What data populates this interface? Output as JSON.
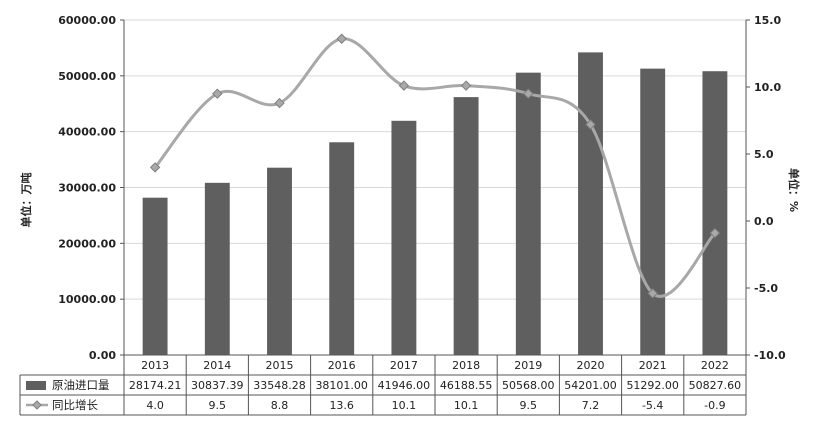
{
  "chart_data": {
    "type": "bar+line",
    "categories": [
      "2013",
      "2014",
      "2015",
      "2016",
      "2017",
      "2018",
      "2019",
      "2020",
      "2021",
      "2022"
    ],
    "series": [
      {
        "name": "原油进口量",
        "type": "bar",
        "axis": "left",
        "color": "#5f5f5f",
        "values": [
          28174.21,
          30837.39,
          33548.28,
          38101.0,
          41946.0,
          46188.55,
          50568.0,
          54201.0,
          51292.0,
          50827.6
        ],
        "labels": [
          "28174.21",
          "30837.39",
          "33548.28",
          "38101.00",
          "41946.00",
          "46188.55",
          "50568.00",
          "54201.00",
          "51292.00",
          "50827.60"
        ]
      },
      {
        "name": "同比增长",
        "type": "line",
        "axis": "right",
        "color": "#a8a8a8",
        "values": [
          4.0,
          9.5,
          8.8,
          13.6,
          10.1,
          10.1,
          9.5,
          7.2,
          -5.4,
          -0.9
        ],
        "labels": [
          "4.0",
          "9.5",
          "8.8",
          "13.6",
          "10.1",
          "10.1",
          "9.5",
          "7.2",
          "-5.4",
          "-0.9"
        ]
      }
    ],
    "y_left": {
      "label": "单位：万吨",
      "ylim": [
        0,
        60000
      ],
      "ticks": [
        "0.00",
        "10000.00",
        "20000.00",
        "30000.00",
        "40000.00",
        "50000.00",
        "60000.00"
      ]
    },
    "y_right": {
      "label": "单位：%",
      "ylim": [
        -10,
        15
      ],
      "ticks": [
        "-10.0",
        "-5.0",
        "0.0",
        "5.0",
        "10.0",
        "15.0"
      ]
    },
    "grid": true,
    "legend": "data-table"
  }
}
